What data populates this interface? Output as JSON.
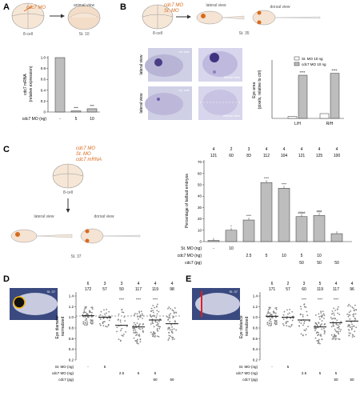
{
  "panels": {
    "A": {
      "letter": "A",
      "injection_label": "cdc7 MO",
      "stage_left": "8-cell",
      "view_right": "animal view",
      "stage_right": "St. 10",
      "chart": {
        "ylabel": "cdc7 mRNA\n(relative expression)",
        "yticks": [
          "0",
          "0.2",
          "0.4",
          "0.6",
          "0.8",
          "1.0"
        ],
        "xaxis_label": "cdc7 MO (ng)",
        "categories": [
          "-",
          "5",
          "10"
        ],
        "values": [
          1.0,
          0.02,
          0.06
        ],
        "annotations": [
          "",
          "***",
          "***"
        ]
      }
    },
    "B": {
      "letter": "B",
      "injection_label_1": "cdc7 MO",
      "injection_label_2": "St. MO",
      "stage_left": "8-cell",
      "view_mid": "lateral view",
      "view_right": "dorsal view",
      "stage_right": "St. 35",
      "row_label_1": "lateral view",
      "row_label_2": "lateral view",
      "photo_labels": [
        "ctrl side",
        "dorsal view",
        "inj. side",
        "ventral view"
      ],
      "chart": {
        "ylabel": "Eye area\n(pixels, relative to ctrl)",
        "legend": [
          "St. MO 10 ng",
          "cdc7 MO 10 ng"
        ],
        "categories": [
          "L/H",
          "R/H"
        ],
        "series": [
          {
            "name": "St. MO 10 ng",
            "values": [
              2,
              5
            ]
          },
          {
            "name": "cdc7 MO 10 ng",
            "values": [
              45,
              47
            ]
          }
        ],
        "annotations": [
          "****",
          "****"
        ]
      }
    },
    "C": {
      "letter": "C",
      "injection_label_1": "cdc7 MO",
      "injection_label_2": "St. MO",
      "injection_label_3": "cdc7 mRNA",
      "stage_left": "8-cell",
      "view_left": "lateral view",
      "view_right": "dorsal view",
      "stage_bottom": "St. 37",
      "counts_top": [
        "4",
        "2",
        "3",
        "4",
        "4",
        "4",
        "4",
        "4"
      ],
      "counts_bottom": [
        "121",
        "60",
        "83",
        "112",
        "104",
        "121",
        "125",
        "100"
      ],
      "chart": {
        "ylabel": "Percentage of tailbud embryos",
        "yticks": [
          "0",
          "10",
          "20",
          "30",
          "40",
          "50",
          "60",
          "70"
        ],
        "values": [
          1,
          10,
          19,
          52,
          47,
          22,
          23,
          7
        ],
        "annotations": [
          "",
          "*",
          "****",
          "****",
          "****",
          "####",
          "###",
          ""
        ],
        "row_labels": [
          "St. MO (ng)",
          "cdc7 MO (ng)",
          "cdc7 (pg)"
        ],
        "rows": [
          [
            "-",
            "10",
            "",
            "",
            "",
            "",
            "",
            ""
          ],
          [
            "",
            "",
            "2.5",
            "5",
            "10",
            "5",
            "10",
            ""
          ],
          [
            "",
            "",
            "",
            "",
            "",
            "50",
            "50",
            "50"
          ]
        ]
      }
    },
    "D": {
      "letter": "D",
      "photo_caption": "St. 37",
      "counts_top": [
        "6",
        "3",
        "3",
        "4",
        "4",
        "4"
      ],
      "counts_bottom": [
        "172",
        "57",
        "50",
        "117",
        "119",
        "98"
      ],
      "chart": {
        "ylabel": "Eye diameter\nnormalized",
        "yticks": [
          "0.2",
          "0.4",
          "0.6",
          "0.8",
          "1.0",
          "1.2",
          "1.4"
        ],
        "medians": [
          1.03,
          1.0,
          0.85,
          0.82,
          0.95,
          0.88
        ],
        "annotations": [
          "",
          "",
          "****",
          "****",
          "****",
          ""
        ],
        "row_labels": [
          "St. MO (ng)",
          "cdc7 MO (ng)",
          "cdc7 (pg)"
        ],
        "rows": [
          [
            "-",
            "5",
            "",
            "",
            "",
            ""
          ],
          [
            "",
            "",
            "2.5",
            "5",
            "5",
            ""
          ],
          [
            "",
            "",
            "",
            "",
            "50",
            "50"
          ]
        ]
      }
    },
    "E": {
      "letter": "E",
      "photo_caption": "St. 37",
      "counts_top": [
        "6",
        "2",
        "3",
        "5",
        "4",
        "4"
      ],
      "counts_bottom": [
        "171",
        "57",
        "60",
        "119",
        "117",
        "96"
      ],
      "chart": {
        "ylabel": "Eye distance\nnormalized",
        "yticks": [
          "0.2",
          "0.4",
          "0.6",
          "0.8",
          "1.0",
          "1.2",
          "1.4"
        ],
        "medians": [
          1.02,
          1.0,
          0.95,
          0.82,
          0.9,
          0.93
        ],
        "annotations": [
          "",
          "",
          "****",
          "****",
          "****",
          ""
        ],
        "row_labels": [
          "St. MO (ng)",
          "cdc7 MO (ng)",
          "cdc7 (pg)"
        ],
        "rows": [
          [
            "-",
            "5",
            "",
            "",
            "",
            ""
          ],
          [
            "",
            "",
            "2.5",
            "5",
            "5",
            ""
          ],
          [
            "",
            "",
            "",
            "",
            "50",
            "50"
          ]
        ]
      }
    }
  },
  "colors": {
    "accent_orange": "#d86a1e",
    "bar_grey": "#bdbdbd",
    "bar_white": "#ffffff",
    "embryo_purple": "#5b4c8e",
    "photo_bg": "#dcdcf0"
  }
}
